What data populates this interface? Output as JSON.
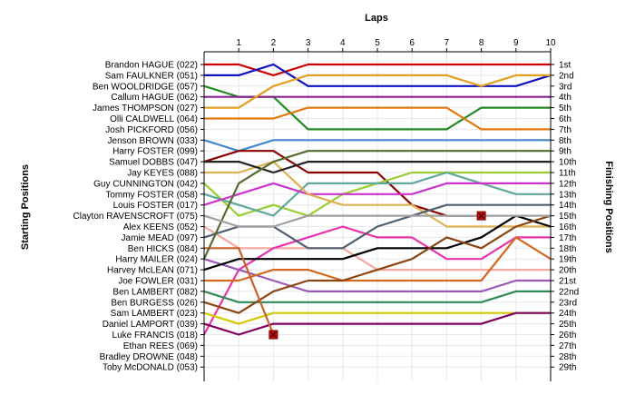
{
  "chart_data": {
    "type": "line",
    "title": "Laps",
    "ylabel_left": "Starting Positions",
    "ylabel_right": "Finishing Positions",
    "x_ticks": [
      1,
      2,
      3,
      4,
      5,
      6,
      7,
      8,
      9,
      10
    ],
    "x_range": [
      0,
      10
    ],
    "y_range": [
      1,
      29
    ],
    "grid": true,
    "starting_labels": [
      "Brandon HAGUE (022)",
      "Sam FAULKNER (051)",
      "Ben WOOLDRIDGE (057)",
      "Callum HAGUE (062)",
      "James THOMPSON (027)",
      "Olli CALDWELL (064)",
      "Josh PICKFORD (056)",
      "Jenson BROWN (033)",
      "Harry FOSTER (099)",
      "Samuel DOBBS (047)",
      "Jay KEYES (088)",
      "Guy CUNNINGTON (042)",
      "Tommy FOSTER (058)",
      "Louis FOSTER (017)",
      "Clayton RAVENSCROFT (075)",
      "Alex KEENS (052)",
      "Jamie MEAD (097)",
      "Ben HICKS (084)",
      "Harry MAILER (024)",
      "Harvey McLEAN (071)",
      "Joe FOWLER (031)",
      "Ben LAMBERT (082)",
      "Ben BURGESS (026)",
      "Sam LAMBERT (023)",
      "Daniel LAMPORT (039)",
      "Luke FRANCIS (018)",
      "Ethan REES (069)",
      "Bradley DROWNE (048)",
      "Toby McDONALD (053)"
    ],
    "finishing_labels": [
      "1st",
      "2nd",
      "3rd",
      "4th",
      "5th",
      "6th",
      "7th",
      "8th",
      "9th",
      "10th",
      "11th",
      "12th",
      "13th",
      "14th",
      "15th",
      "16th",
      "17th",
      "18th",
      "19th",
      "20th",
      "21st",
      "22nd",
      "23rd",
      "24th",
      "25th",
      "26th",
      "27th",
      "28th",
      "29th"
    ],
    "series": [
      {
        "color": "#cc0000",
        "values": [
          1,
          1,
          2,
          1,
          1,
          1,
          1,
          1,
          1,
          1,
          1
        ]
      },
      {
        "color": "#1010c0",
        "values": [
          2,
          2,
          1,
          3,
          3,
          3,
          3,
          3,
          3,
          3,
          2
        ]
      },
      {
        "color": "#228b22",
        "values": [
          3,
          4,
          4,
          7,
          7,
          7,
          7,
          7,
          5,
          5,
          5
        ]
      },
      {
        "color": "#8a2090",
        "values": [
          4,
          4,
          4,
          4,
          4,
          4,
          4,
          4,
          4,
          4,
          4
        ]
      },
      {
        "color": "#e07a10",
        "values": [
          6,
          6,
          6,
          5,
          5,
          5,
          5,
          5,
          7,
          7,
          7
        ]
      },
      {
        "color": "#4488cc",
        "values": [
          8,
          9,
          8,
          8,
          8,
          8,
          8,
          8,
          8,
          8,
          8
        ]
      },
      {
        "color": "#8b0000",
        "values": [
          10,
          9,
          9,
          11,
          11,
          11,
          14,
          15,
          15
        ]
      },
      {
        "color": "#9acd32",
        "values": [
          12,
          15,
          14,
          15,
          13,
          12,
          11,
          11,
          11,
          11,
          11
        ]
      },
      {
        "color": "#5fa89a",
        "values": [
          13,
          14,
          15,
          12,
          12,
          12,
          12,
          11,
          12,
          13,
          13
        ]
      },
      {
        "color": "#cc33cc",
        "values": [
          14,
          13,
          12,
          13,
          13,
          13,
          13,
          12,
          12,
          12,
          12
        ]
      },
      {
        "color": "#ddb050",
        "values": [
          11,
          11,
          10,
          13,
          14,
          14,
          14,
          16,
          16,
          16,
          16
        ]
      },
      {
        "color": "#222222",
        "values": [
          10,
          10,
          11,
          10,
          10,
          10,
          10,
          10,
          10,
          10,
          10
        ]
      },
      {
        "color": "#f4a8a0",
        "values": [
          16,
          18,
          18,
          18,
          18,
          20,
          20,
          20,
          20,
          20,
          20
        ]
      },
      {
        "color": "#e833aa",
        "values": [
          26,
          20,
          18,
          17,
          16,
          17,
          17,
          19,
          19,
          17,
          17
        ]
      },
      {
        "color": "#506070",
        "values": [
          17,
          16,
          16,
          18,
          18,
          16,
          15,
          14,
          14,
          14,
          14
        ]
      },
      {
        "color": "#9b59b6",
        "values": [
          19,
          20,
          21,
          22,
          22,
          22,
          22,
          22,
          22,
          21,
          21
        ]
      },
      {
        "color": "#000000",
        "values": [
          20,
          19,
          19,
          19,
          19,
          18,
          18,
          18,
          17,
          15,
          16
        ]
      },
      {
        "color": "#d2691e",
        "values": [
          21,
          21,
          20,
          20,
          21,
          21,
          21,
          21,
          21,
          17,
          19
        ]
      },
      {
        "color": "#2e8b57",
        "values": [
          22,
          23,
          23,
          23,
          23,
          23,
          23,
          23,
          23,
          22,
          22
        ]
      },
      {
        "color": "#8b4513",
        "values": [
          23,
          24,
          22,
          21,
          21,
          20,
          19,
          17,
          18,
          16,
          15
        ]
      },
      {
        "color": "#d4c800",
        "values": [
          24,
          25,
          24,
          24,
          24,
          24,
          24,
          24,
          24,
          24,
          24
        ]
      },
      {
        "color": "#800060",
        "values": [
          25,
          26,
          25,
          25,
          25,
          25,
          25,
          25,
          25,
          24,
          24
        ]
      },
      {
        "color": "#c8612a",
        "values": [
          18,
          18,
          26
        ]
      },
      {
        "color": "#556b2f",
        "values": [
          19,
          12,
          10,
          9,
          9,
          9,
          9,
          9,
          9,
          9,
          9
        ]
      },
      {
        "color": "#e0a020",
        "values": [
          5,
          5,
          3,
          2,
          2,
          2,
          2,
          2,
          3,
          2,
          2
        ]
      },
      {
        "color": "#a0a0a0",
        "values": [
          15,
          16,
          16,
          15,
          15,
          15,
          15,
          15,
          15,
          15,
          15
        ]
      }
    ],
    "markers": [
      {
        "lap": 2,
        "position": 26
      },
      {
        "lap": 8,
        "position": 15
      }
    ]
  }
}
